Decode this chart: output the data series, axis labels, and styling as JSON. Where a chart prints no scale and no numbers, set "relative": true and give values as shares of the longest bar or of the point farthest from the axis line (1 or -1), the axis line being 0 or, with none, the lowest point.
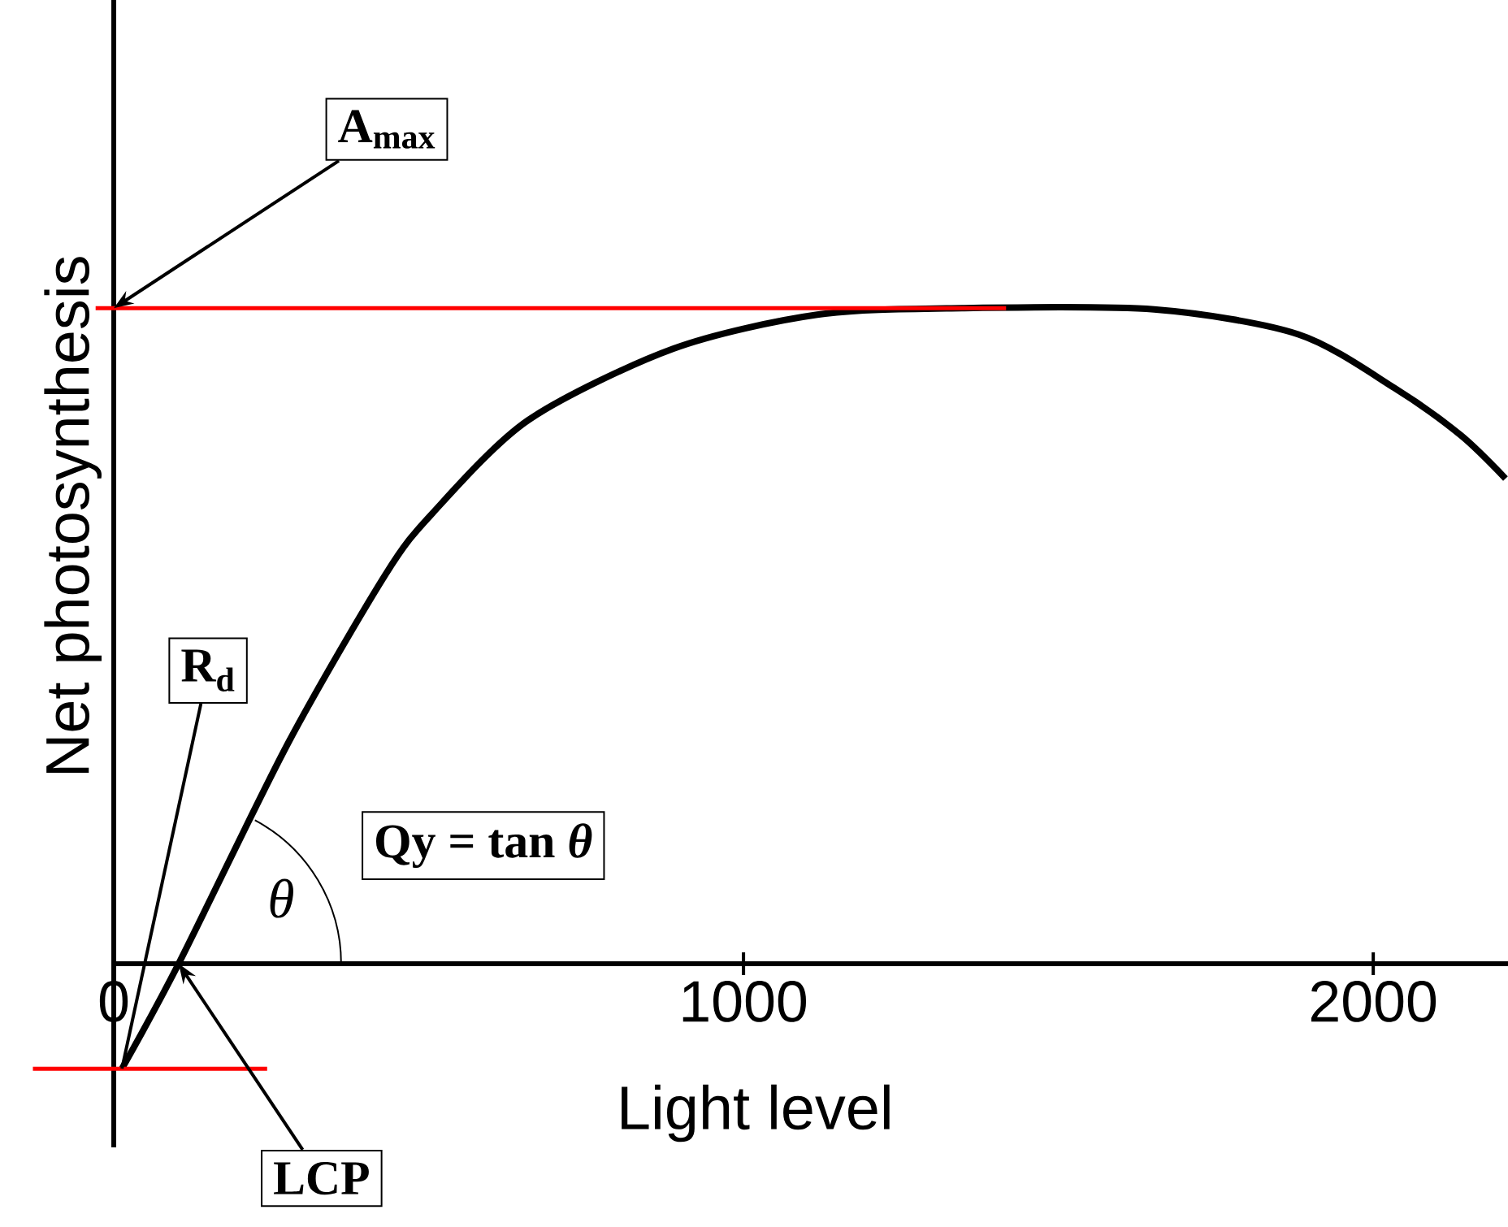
{
  "chart_data": {
    "type": "line",
    "relative": true,
    "xlabel": "Light level",
    "ylabel": "Net photosynthesis",
    "xlim": [
      0,
      2214
    ],
    "xticks": [
      0,
      1000,
      2000
    ],
    "color": "#000000",
    "x": [
      13,
      103,
      276,
      431,
      506,
      658,
      888,
      1117,
      1347,
      1652,
      1881,
      2034,
      2139,
      2210
    ],
    "values": [
      -0.16,
      0,
      0.335,
      0.593,
      0.687,
      0.829,
      0.938,
      0.99,
      1,
      0.998,
      0.96,
      0.878,
      0.806,
      0.74
    ],
    "ref_lines": [
      {
        "axis": "y",
        "value": 1,
        "color": "#ff0000"
      },
      {
        "axis": "y",
        "value": -0.16,
        "color": "#ff0000"
      }
    ],
    "annotations": [
      {
        "text": "A$_{max}$",
        "x": 0,
        "y": 1
      },
      {
        "text": "R$_{d}$",
        "x": 13,
        "y": -0.16
      },
      {
        "text": "LCP",
        "x": 103,
        "y": 0
      },
      "Qy = tan *θ*",
      "*θ*"
    ]
  }
}
